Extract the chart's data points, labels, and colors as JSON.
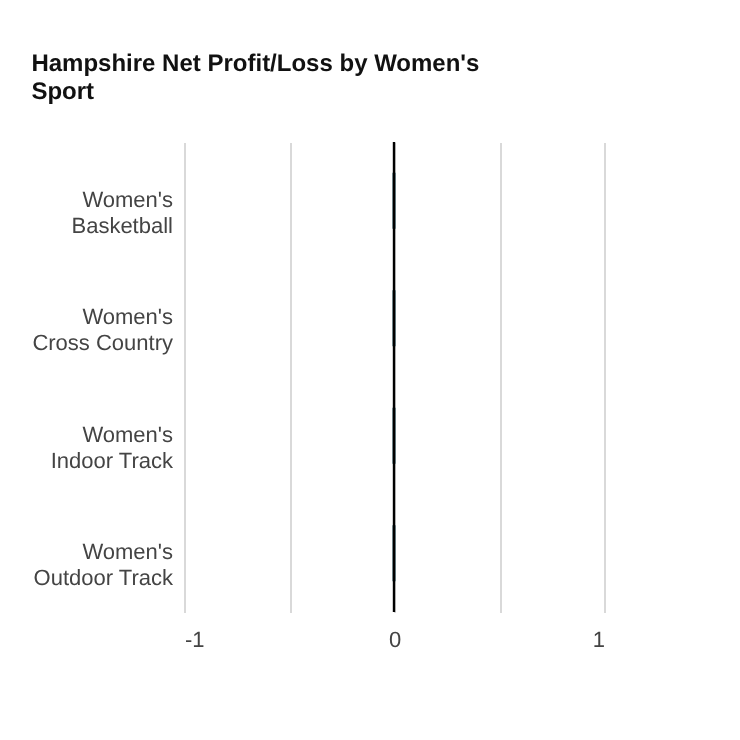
{
  "chart_data": {
    "type": "bar",
    "orientation": "horizontal",
    "title": "Hampshire Net Profit/Loss by Women's Sport",
    "categories": [
      "Women's Basketball",
      "Women's Cross Country",
      "Women's Indoor Track",
      "Women's Outdoor Track"
    ],
    "values": [
      0,
      0,
      0,
      0
    ],
    "color": "#1f4e5a",
    "xlim": [
      -1,
      1
    ],
    "xticks": [
      -1,
      {
        "value": -0.5,
        "label": null
      },
      0,
      {
        "value": 0.5,
        "label": null
      },
      1
    ],
    "grid": "x",
    "ref_lines": [
      {
        "axis": "x",
        "value": 0,
        "color": "#000000"
      }
    ]
  }
}
